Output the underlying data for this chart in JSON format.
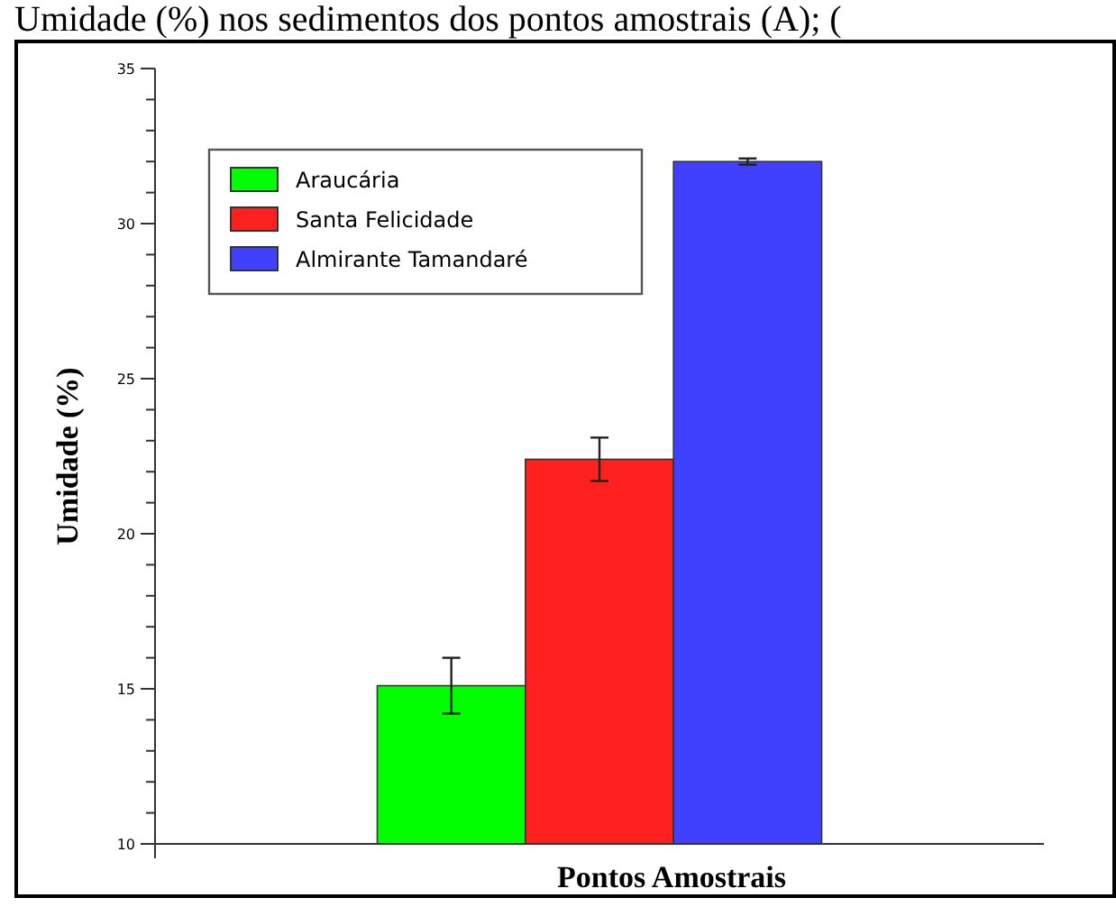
{
  "chart_data": {
    "type": "bar",
    "title": "Umidade (%) nos sedimentos dos pontos amostrais (A); (",
    "xlabel": "Pontos Amostrais",
    "ylabel": "Umidade (%)",
    "categories": [
      null
    ],
    "series": [
      {
        "name": "Araucária",
        "color": "#00ff00",
        "values": [
          15.1
        ],
        "errors": [
          0.9
        ]
      },
      {
        "name": "Santa Felicidade",
        "color": "#ff2020",
        "values": [
          22.4
        ],
        "errors": [
          0.7
        ]
      },
      {
        "name": "Almirante Tamandaré",
        "color": "#4040ff",
        "values": [
          32.0
        ],
        "errors": [
          0.1
        ]
      }
    ],
    "ylim": [
      10,
      35
    ],
    "yticks": [
      10,
      {
        "value": 11,
        "label": null
      },
      {
        "value": 12,
        "label": null
      },
      {
        "value": 13,
        "label": null
      },
      {
        "value": 14,
        "label": null
      },
      15,
      {
        "value": 16,
        "label": null
      },
      {
        "value": 17,
        "label": null
      },
      {
        "value": 18,
        "label": null
      },
      {
        "value": 19,
        "label": null
      },
      20,
      {
        "value": 21,
        "label": null
      },
      {
        "value": 22,
        "label": null
      },
      {
        "value": 23,
        "label": null
      },
      {
        "value": 24,
        "label": null
      },
      25,
      {
        "value": 26,
        "label": null
      },
      {
        "value": 27,
        "label": null
      },
      {
        "value": 28,
        "label": null
      },
      {
        "value": 29,
        "label": null
      },
      30,
      {
        "value": 31,
        "label": null
      },
      {
        "value": 32,
        "label": null
      },
      {
        "value": 33,
        "label": null
      },
      {
        "value": 34,
        "label": null
      },
      35
    ],
    "grid": false,
    "legend": "top left"
  }
}
